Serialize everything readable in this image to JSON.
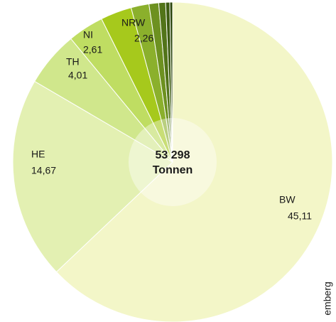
{
  "chart_data": {
    "type": "pie",
    "categories": [
      "BW",
      "HE",
      "TH",
      "NI",
      "NRW",
      null,
      null,
      null,
      null,
      null
    ],
    "values": [
      45.11,
      14.67,
      4.01,
      2.61,
      2.26,
      1.3,
      0.7,
      0.5,
      0.3,
      0.2
    ],
    "value_labels": [
      "45,11",
      "14,67",
      "4,01",
      "2,61",
      "2,26",
      null,
      null,
      null,
      null,
      null
    ],
    "colors": [
      "#f3f6c8",
      "#e3f0b2",
      "#d0e78c",
      "#bfdd62",
      "#a6c91c",
      "#8bb02c",
      "#6d9120",
      "#527419",
      "#3d5c12",
      "#2b460a"
    ],
    "center_label": [
      "53 298",
      "Tonnen"
    ],
    "caption": "emberg"
  }
}
